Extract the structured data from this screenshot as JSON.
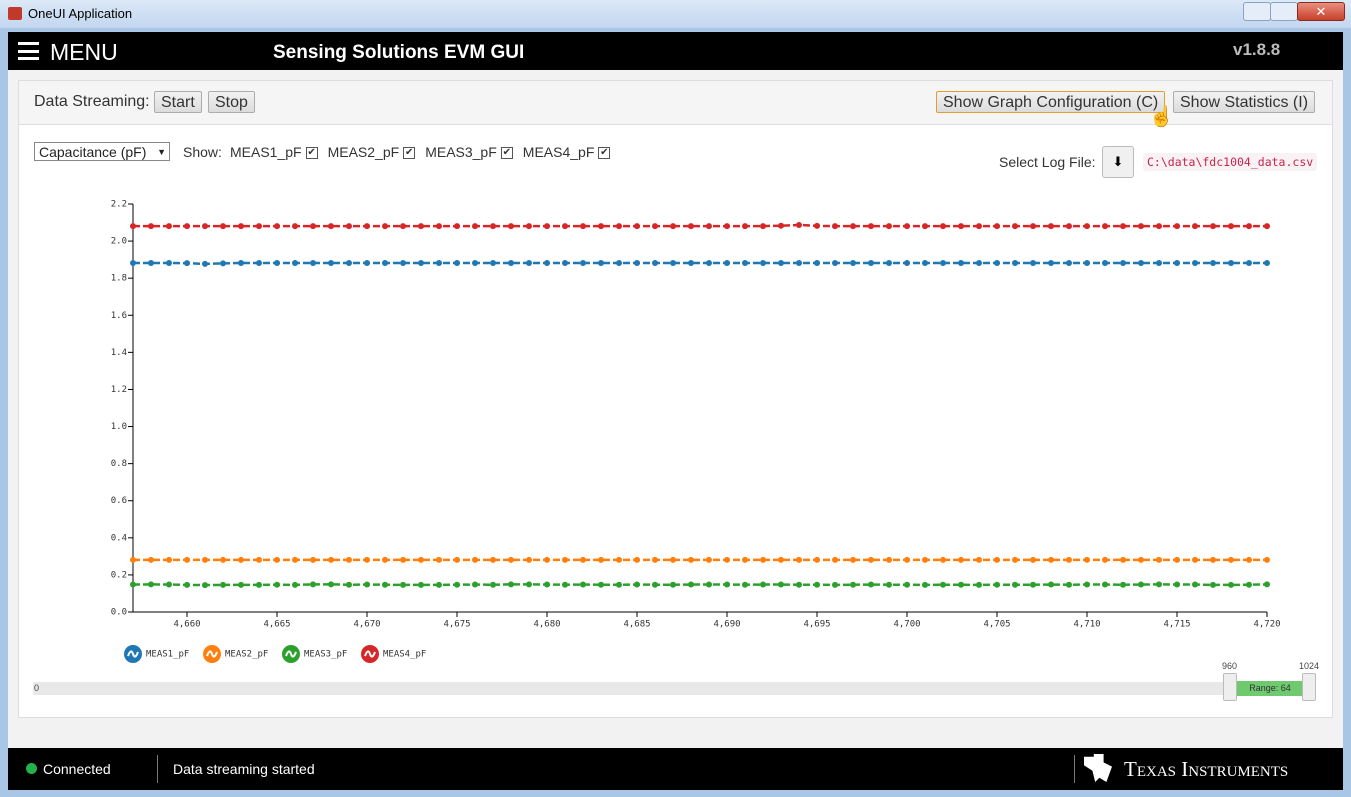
{
  "window": {
    "title": "OneUI Application"
  },
  "header": {
    "menu": "MENU",
    "title": "Sensing Solutions EVM GUI",
    "version": "v1.8.8"
  },
  "toolbar": {
    "streaming_label": "Data Streaming:",
    "start": "Start",
    "stop": "Stop",
    "graph_config": "Show Graph Configuration (C)",
    "statistics": "Show Statistics (I)"
  },
  "controls": {
    "unit_select": "Capacitance (pF)",
    "show_label": "Show:",
    "log_label": "Select Log File:",
    "log_path": "C:\\data\\fdc1004_data.csv"
  },
  "chart_data": {
    "type": "line",
    "x": [
      4657,
      4658,
      4659,
      4660,
      4661,
      4662,
      4663,
      4664,
      4665,
      4666,
      4667,
      4668,
      4669,
      4670,
      4671,
      4672,
      4673,
      4674,
      4675,
      4676,
      4677,
      4678,
      4679,
      4680,
      4681,
      4682,
      4683,
      4684,
      4685,
      4686,
      4687,
      4688,
      4689,
      4690,
      4691,
      4692,
      4693,
      4694,
      4695,
      4696,
      4697,
      4698,
      4699,
      4700,
      4701,
      4702,
      4703,
      4704,
      4705,
      4706,
      4707,
      4708,
      4709,
      4710,
      4711,
      4712,
      4713,
      4714,
      4715,
      4716,
      4717,
      4718,
      4719,
      4720
    ],
    "series": [
      {
        "name": "MEAS1_pF",
        "color": "#1f77b4",
        "checked": true,
        "values": [
          1.882,
          1.882,
          1.882,
          1.881,
          1.877,
          1.88,
          1.882,
          1.882,
          1.882,
          1.882,
          1.882,
          1.882,
          1.882,
          1.882,
          1.882,
          1.882,
          1.882,
          1.882,
          1.882,
          1.882,
          1.882,
          1.882,
          1.882,
          1.882,
          1.882,
          1.882,
          1.882,
          1.882,
          1.882,
          1.882,
          1.882,
          1.882,
          1.882,
          1.882,
          1.882,
          1.882,
          1.882,
          1.882,
          1.882,
          1.882,
          1.882,
          1.882,
          1.882,
          1.882,
          1.882,
          1.882,
          1.882,
          1.882,
          1.882,
          1.882,
          1.882,
          1.882,
          1.882,
          1.882,
          1.882,
          1.882,
          1.882,
          1.882,
          1.882,
          1.882,
          1.882,
          1.882,
          1.882,
          1.882
        ]
      },
      {
        "name": "MEAS2_pF",
        "color": "#ff7f0e",
        "checked": true,
        "values": [
          0.281,
          0.281,
          0.281,
          0.281,
          0.281,
          0.281,
          0.281,
          0.281,
          0.281,
          0.281,
          0.281,
          0.281,
          0.281,
          0.281,
          0.281,
          0.281,
          0.281,
          0.281,
          0.281,
          0.281,
          0.281,
          0.281,
          0.281,
          0.281,
          0.281,
          0.281,
          0.281,
          0.281,
          0.281,
          0.281,
          0.281,
          0.281,
          0.281,
          0.281,
          0.281,
          0.281,
          0.281,
          0.281,
          0.281,
          0.281,
          0.281,
          0.281,
          0.281,
          0.281,
          0.281,
          0.281,
          0.281,
          0.281,
          0.281,
          0.281,
          0.281,
          0.281,
          0.281,
          0.281,
          0.281,
          0.281,
          0.281,
          0.281,
          0.281,
          0.281,
          0.281,
          0.281,
          0.281,
          0.281
        ]
      },
      {
        "name": "MEAS3_pF",
        "color": "#2ca02c",
        "checked": true,
        "values": [
          0.148,
          0.149,
          0.148,
          0.146,
          0.145,
          0.146,
          0.146,
          0.146,
          0.147,
          0.146,
          0.149,
          0.149,
          0.147,
          0.148,
          0.147,
          0.146,
          0.146,
          0.146,
          0.147,
          0.148,
          0.147,
          0.149,
          0.149,
          0.148,
          0.147,
          0.148,
          0.147,
          0.147,
          0.148,
          0.147,
          0.147,
          0.148,
          0.148,
          0.148,
          0.147,
          0.148,
          0.148,
          0.147,
          0.147,
          0.146,
          0.147,
          0.148,
          0.147,
          0.147,
          0.146,
          0.147,
          0.147,
          0.146,
          0.147,
          0.147,
          0.147,
          0.148,
          0.147,
          0.148,
          0.148,
          0.147,
          0.148,
          0.149,
          0.148,
          0.148,
          0.146,
          0.146,
          0.147,
          0.149
        ]
      },
      {
        "name": "MEAS4_pF",
        "color": "#d62728",
        "checked": true,
        "values": [
          2.081,
          2.081,
          2.081,
          2.081,
          2.081,
          2.081,
          2.081,
          2.081,
          2.081,
          2.081,
          2.081,
          2.081,
          2.081,
          2.081,
          2.081,
          2.081,
          2.081,
          2.081,
          2.081,
          2.081,
          2.081,
          2.081,
          2.081,
          2.081,
          2.081,
          2.081,
          2.081,
          2.081,
          2.081,
          2.081,
          2.081,
          2.081,
          2.081,
          2.081,
          2.081,
          2.081,
          2.083,
          2.087,
          2.082,
          2.081,
          2.081,
          2.081,
          2.081,
          2.081,
          2.081,
          2.081,
          2.081,
          2.081,
          2.081,
          2.081,
          2.081,
          2.081,
          2.081,
          2.081,
          2.081,
          2.081,
          2.081,
          2.081,
          2.081,
          2.081,
          2.081,
          2.081,
          2.081,
          2.081
        ]
      }
    ],
    "xlim": [
      4657,
      4720
    ],
    "ylim": [
      0,
      2.2
    ],
    "xticks": [
      {
        "value": 4660,
        "label": "4,660"
      },
      {
        "value": 4665,
        "label": "4,665"
      },
      {
        "value": 4670,
        "label": "4,670"
      },
      {
        "value": 4675,
        "label": "4,675"
      },
      {
        "value": 4680,
        "label": "4,680"
      },
      {
        "value": 4685,
        "label": "4,685"
      },
      {
        "value": 4690,
        "label": "4,690"
      },
      {
        "value": 4695,
        "label": "4,695"
      },
      {
        "value": 4700,
        "label": "4,700"
      },
      {
        "value": 4705,
        "label": "4,705"
      },
      {
        "value": 4710,
        "label": "4,710"
      },
      {
        "value": 4715,
        "label": "4,715"
      },
      {
        "value": 4720,
        "label": "4,720"
      }
    ],
    "yticks": [
      {
        "value": 0,
        "label": "0.0"
      },
      0.2,
      0.4,
      0.6,
      0.8,
      {
        "value": 1,
        "label": "1.0"
      },
      1.2,
      1.4,
      1.6,
      1.8,
      {
        "value": 2,
        "label": "2.0"
      },
      2.2
    ],
    "dashed": true,
    "markers": true,
    "grid": false
  },
  "slider": {
    "min": 0,
    "from": 960,
    "to": 1024,
    "range_label": "Range: 64"
  },
  "status": {
    "connection": "Connected",
    "message": "Data streaming started",
    "brand": "Texas Instruments"
  }
}
